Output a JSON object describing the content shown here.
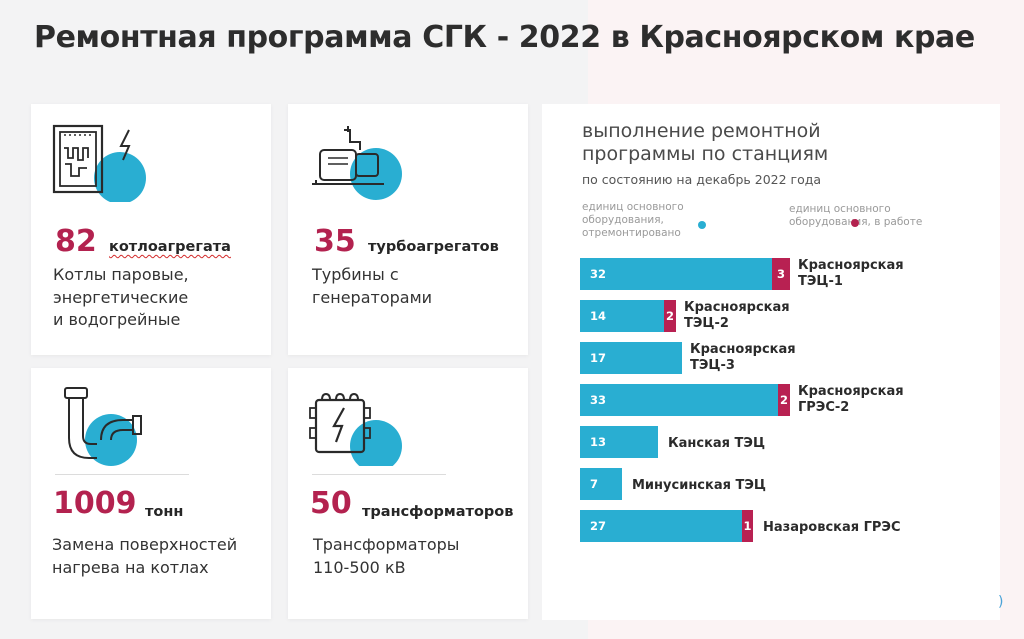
{
  "page": {
    "title": "Ремонтная программа СГК - 2022 в Красноярском крае"
  },
  "colors": {
    "accent": "#b3224f",
    "blue": "#29aed2",
    "crimson": "#b3224f",
    "bar_red": "#b82152"
  },
  "cards": [
    {
      "icon": "boiler-icon",
      "number": "82",
      "unit": "котлоагрегата",
      "desc": [
        "Котлы паровые,",
        "энергетические",
        "и водогрейные"
      ]
    },
    {
      "icon": "turbine-icon",
      "number": "35",
      "unit": "турбоагрегатов",
      "desc": [
        "Турбины с",
        "генераторами"
      ]
    },
    {
      "icon": "pipe-icon",
      "number": "1009",
      "unit": "тонн",
      "desc": [
        "Замена поверхностей",
        "нагрева на котлах"
      ]
    },
    {
      "icon": "transformer-icon",
      "number": "50",
      "unit": "трансформаторов",
      "desc": [
        "Трансформаторы",
        "110-500 кВ"
      ]
    }
  ],
  "chart_data": {
    "type": "bar",
    "orientation": "horizontal",
    "stacked": true,
    "title": "выполнение ремонтной программы по станциям",
    "subtitle": "по состоянию на декабрь 2022 года",
    "legend": [
      {
        "label": "единиц основного оборудования, отремонтировано",
        "color": "#29aed2"
      },
      {
        "label": "единиц основного оборудования, в работе",
        "color": "#b3224f"
      }
    ],
    "categories": [
      [
        "Красноярская",
        "ТЭЦ-1"
      ],
      [
        "Красноярская",
        "ТЭЦ-2"
      ],
      [
        "Красноярская",
        "ТЭЦ-3"
      ],
      [
        "Красноярская",
        "ГРЭС-2"
      ],
      [
        "Канская ТЭЦ"
      ],
      [
        "Минусинская ТЭЦ"
      ],
      [
        "Назаровская ГРЭС"
      ]
    ],
    "series": [
      {
        "name": "единиц основного оборудования, отремонтировано",
        "values": [
          32,
          14,
          17,
          33,
          13,
          7,
          27
        ]
      },
      {
        "name": "единиц основного оборудования, в работе",
        "values": [
          3,
          2,
          0,
          2,
          0,
          0,
          1
        ]
      }
    ]
  }
}
